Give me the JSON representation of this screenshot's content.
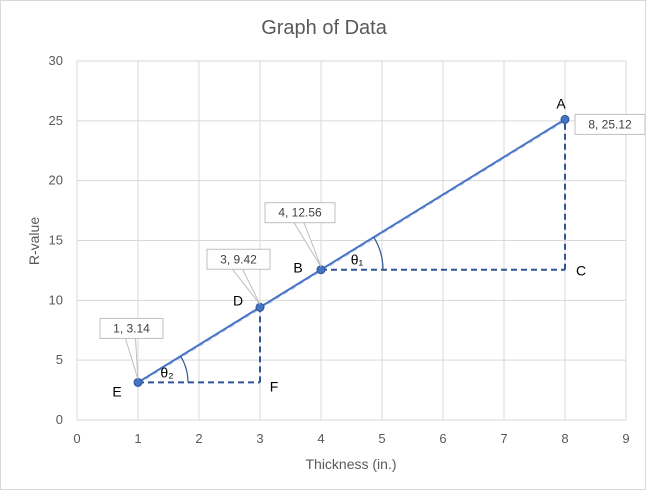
{
  "chart_data": {
    "type": "scatter",
    "title": "Graph of Data",
    "xlabel": "Thickness (in.)",
    "ylabel": "R-value",
    "xlim": [
      0,
      9
    ],
    "ylim": [
      0,
      30
    ],
    "x_ticks": [
      0,
      1,
      2,
      3,
      4,
      5,
      6,
      7,
      8,
      9
    ],
    "y_ticks": [
      0,
      5,
      10,
      15,
      20,
      25,
      30
    ],
    "grid": true,
    "series_color": "#4472c4",
    "points": [
      {
        "x": 1,
        "y": 3.14,
        "data_label": "1, 3.14"
      },
      {
        "x": 3,
        "y": 9.42,
        "data_label": "3, 9.42"
      },
      {
        "x": 4,
        "y": 12.56,
        "data_label": "4, 12.56"
      },
      {
        "x": 8,
        "y": 25.12,
        "data_label": "8, 25.12"
      }
    ],
    "annotations": {
      "point_letters": [
        {
          "text": "A",
          "x": 8,
          "y": 25.12
        },
        {
          "text": "B",
          "x": 4,
          "y": 12.56
        },
        {
          "text": "C",
          "x": 8,
          "y": 12.56
        },
        {
          "text": "D",
          "x": 3,
          "y": 9.42
        },
        {
          "text": "E",
          "x": 1,
          "y": 3.14
        },
        {
          "text": "F",
          "x": 3,
          "y": 3.14
        }
      ],
      "angles": [
        {
          "text": "θ₁",
          "x": 4,
          "y": 12.56
        },
        {
          "text": "θ₂",
          "x": 1,
          "y": 3.14
        }
      ],
      "dashed_lines": [
        {
          "from": [
            4,
            12.56
          ],
          "to": [
            8,
            12.56
          ]
        },
        {
          "from": [
            8,
            12.56
          ],
          "to": [
            8,
            25.12
          ]
        },
        {
          "from": [
            1,
            3.14
          ],
          "to": [
            3,
            3.14
          ]
        },
        {
          "from": [
            3,
            3.14
          ],
          "to": [
            3,
            9.42
          ]
        }
      ]
    }
  }
}
